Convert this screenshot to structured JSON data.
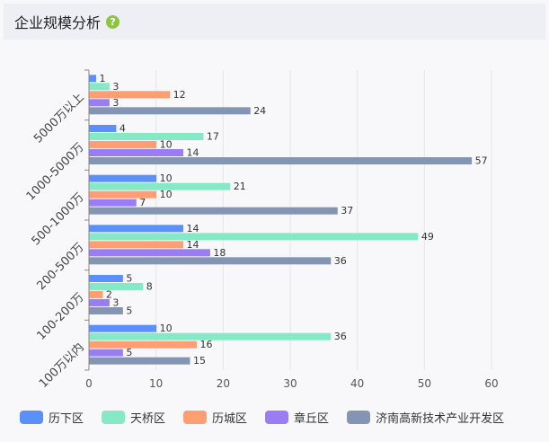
{
  "header": {
    "title": "企业规模分析",
    "help_icon": "question-circle-icon"
  },
  "chart_data": {
    "type": "bar",
    "orientation": "horizontal",
    "title": "",
    "xlabel": "",
    "ylabel": "",
    "xlim": [
      0,
      60
    ],
    "x_ticks": [
      "0",
      "10",
      "20",
      "30",
      "40",
      "50",
      "60"
    ],
    "grid": true,
    "legend_position": "bottom",
    "categories": [
      "5000万以上",
      "1000-5000万",
      "500-1000万",
      "200-500万",
      "100-200万",
      "100万以内"
    ],
    "series": [
      {
        "name": "历下区",
        "color": "#5b8ff9",
        "values": [
          1,
          4,
          10,
          14,
          5,
          10
        ]
      },
      {
        "name": "天桥区",
        "color": "#86e9c5",
        "values": [
          3,
          17,
          21,
          49,
          8,
          36
        ]
      },
      {
        "name": "历城区",
        "color": "#ff9d73",
        "values": [
          12,
          10,
          10,
          14,
          2,
          16
        ]
      },
      {
        "name": "章丘区",
        "color": "#9a7cf5",
        "values": [
          3,
          14,
          7,
          18,
          3,
          5
        ]
      },
      {
        "name": "济南高新技术产业开发区",
        "color": "#8395b3",
        "values": [
          24,
          57,
          37,
          36,
          5,
          15
        ]
      }
    ]
  }
}
